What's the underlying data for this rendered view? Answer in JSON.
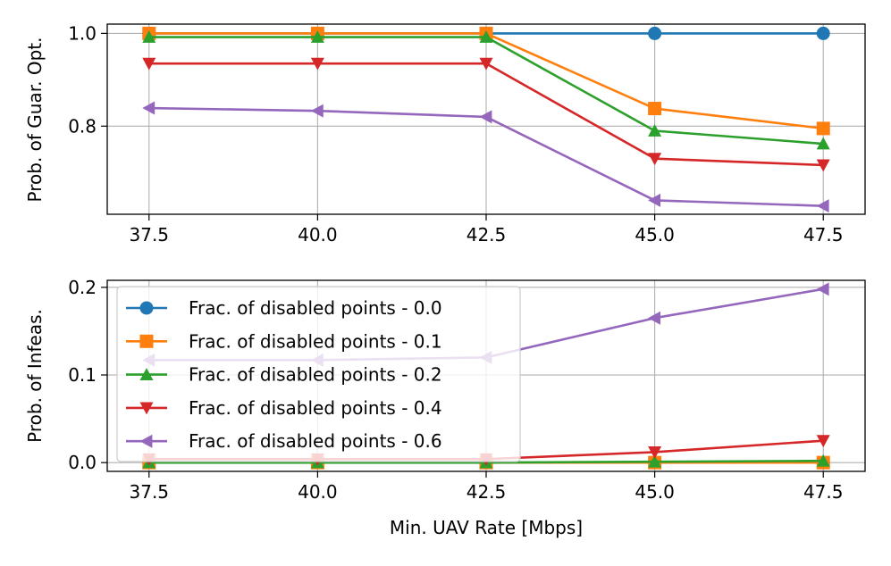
{
  "chart_data": [
    {
      "type": "line",
      "title": "",
      "xlabel": "",
      "ylabel": "Prob. of Guar. Opt.",
      "x": [
        37.5,
        40.0,
        42.5,
        45.0,
        47.5
      ],
      "x_tick_labels": [
        "37.5",
        "40.0",
        "42.5",
        "45.0",
        "47.5"
      ],
      "xlim": [
        36.88,
        48.12
      ],
      "ylim": [
        0.61,
        1.02
      ],
      "y_ticks": [
        0.8,
        1.0
      ],
      "y_tick_labels": [
        "0.8",
        "1.0"
      ],
      "grid": true,
      "series": [
        {
          "name": "Frac. of disabled points - 0.0",
          "color": "#1f77b4",
          "marker": "circle",
          "values": [
            1.0,
            1.0,
            1.0,
            1.0,
            1.0
          ]
        },
        {
          "name": "Frac. of disabled points - 0.1",
          "color": "#ff7f0e",
          "marker": "square",
          "values": [
            1.0,
            1.0,
            1.0,
            0.838,
            0.795
          ]
        },
        {
          "name": "Frac. of disabled points - 0.2",
          "color": "#2ca02c",
          "marker": "triangle-up",
          "values": [
            0.992,
            0.992,
            0.992,
            0.79,
            0.762
          ]
        },
        {
          "name": "Frac. of disabled points - 0.4",
          "color": "#d62728",
          "marker": "triangle-down",
          "values": [
            0.935,
            0.935,
            0.935,
            0.73,
            0.716
          ]
        },
        {
          "name": "Frac. of disabled points - 0.6",
          "color": "#9467bd",
          "marker": "triangle-left",
          "values": [
            0.839,
            0.833,
            0.82,
            0.64,
            0.628
          ]
        }
      ]
    },
    {
      "type": "line",
      "title": "",
      "xlabel": "Min. UAV Rate [Mbps]",
      "ylabel": "Prob. of Infeas.",
      "x": [
        37.5,
        40.0,
        42.5,
        45.0,
        47.5
      ],
      "x_tick_labels": [
        "37.5",
        "40.0",
        "42.5",
        "45.0",
        "47.5"
      ],
      "xlim": [
        36.88,
        48.12
      ],
      "ylim": [
        -0.01,
        0.208
      ],
      "y_ticks": [
        0.0,
        0.1,
        0.2
      ],
      "y_tick_labels": [
        "0.0",
        "0.1",
        "0.2"
      ],
      "grid": true,
      "legend_location": "upper-left",
      "series": [
        {
          "name": "Frac. of disabled points - 0.0",
          "color": "#1f77b4",
          "marker": "circle",
          "values": [
            0.0,
            0.0,
            0.0,
            0.0,
            0.0
          ]
        },
        {
          "name": "Frac. of disabled points - 0.1",
          "color": "#ff7f0e",
          "marker": "square",
          "values": [
            0.0,
            0.0,
            0.0,
            0.0,
            0.0
          ]
        },
        {
          "name": "Frac. of disabled points - 0.2",
          "color": "#2ca02c",
          "marker": "triangle-up",
          "values": [
            0.0,
            0.0,
            0.0,
            0.001,
            0.002
          ]
        },
        {
          "name": "Frac. of disabled points - 0.4",
          "color": "#d62728",
          "marker": "triangle-down",
          "values": [
            0.004,
            0.004,
            0.004,
            0.012,
            0.025
          ]
        },
        {
          "name": "Frac. of disabled points - 0.6",
          "color": "#9467bd",
          "marker": "triangle-left",
          "values": [
            0.117,
            0.117,
            0.12,
            0.165,
            0.198
          ]
        }
      ]
    }
  ]
}
